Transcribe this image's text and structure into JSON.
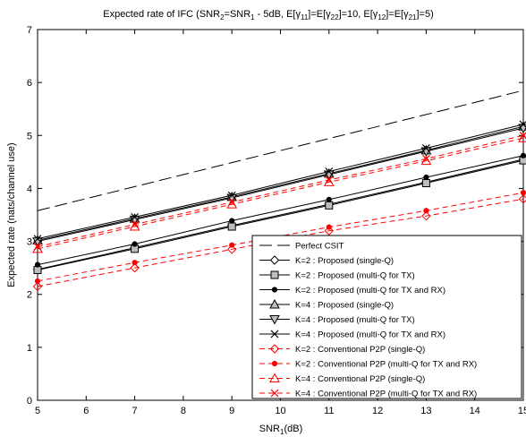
{
  "chart_data": {
    "type": "line",
    "title": {
      "pre": "Expected rate of IFC (SNR",
      "s1": "2",
      "mid1": "=SNR",
      "s2": "1",
      "mid2": " - 5dB, E[γ",
      "s3": "11",
      "mid3": "]=E[γ",
      "s4": "22",
      "mid4": "]=10, E[γ",
      "s5": "12",
      "mid5": "]=E[γ",
      "s6": "21",
      "post": "]=5)"
    },
    "xlabel": {
      "pre": "SNR",
      "sub": "1",
      "post": "(dB)"
    },
    "ylabel": "Expected rate (nats/channel use)",
    "xlim": [
      5,
      15
    ],
    "ylim": [
      0,
      7
    ],
    "xticks": [
      "5",
      "6",
      "7",
      "8",
      "9",
      "10",
      "11",
      "12",
      "13",
      "14",
      "15"
    ],
    "yticks": [
      "0",
      "1",
      "2",
      "3",
      "4",
      "5",
      "6",
      "7"
    ],
    "grid": false,
    "legend_position": "bottom-right",
    "series": [
      {
        "name": "Perfect CSIT",
        "color": "#000000",
        "dash": "longdash",
        "marker": "none",
        "marker_x": [],
        "x": [
          5,
          15
        ],
        "y": [
          3.58,
          5.85
        ]
      },
      {
        "name": "K=2 : Proposed (single-Q)",
        "color": "#000000",
        "dash": "solid",
        "marker": "diamond",
        "marker_x": [
          5,
          7,
          9,
          11,
          13,
          15
        ],
        "x": [
          5,
          7,
          9,
          11,
          13,
          15
        ],
        "y": [
          2.47,
          2.88,
          3.3,
          3.7,
          4.12,
          4.55
        ]
      },
      {
        "name": "K=2 : Proposed (multi-Q for TX)",
        "color": "#000000",
        "dash": "solid",
        "marker": "square",
        "marker_x": [
          5,
          7,
          9,
          11,
          13,
          15
        ],
        "x": [
          5,
          7,
          9,
          11,
          13,
          15
        ],
        "y": [
          2.46,
          2.86,
          3.28,
          3.68,
          4.1,
          4.53
        ]
      },
      {
        "name": "K=2 : Proposed (multi-Q for TX and RX)",
        "color": "#000000",
        "dash": "solid",
        "marker": "dot",
        "marker_x": [
          5,
          7,
          9,
          11,
          13,
          15
        ],
        "x": [
          5,
          7,
          9,
          11,
          13,
          15
        ],
        "y": [
          2.56,
          2.95,
          3.39,
          3.79,
          4.21,
          4.62
        ]
      },
      {
        "name": "K=4 : Proposed (single-Q)",
        "color": "#000000",
        "dash": "solid",
        "marker": "triangle-up",
        "marker_x": [
          5,
          7,
          9,
          11,
          13,
          15
        ],
        "x": [
          5,
          7,
          9,
          11,
          13,
          15
        ],
        "y": [
          3.02,
          3.43,
          3.84,
          4.28,
          4.72,
          5.17
        ]
      },
      {
        "name": "K=4 : Proposed (multi-Q for TX)",
        "color": "#000000",
        "dash": "solid",
        "marker": "triangle-down",
        "marker_x": [
          5,
          7,
          9,
          11,
          13,
          15
        ],
        "x": [
          5,
          7,
          9,
          11,
          13,
          15
        ],
        "y": [
          3.0,
          3.41,
          3.82,
          4.26,
          4.7,
          5.14
        ]
      },
      {
        "name": "K=4 : Proposed (multi-Q for TX and RX)",
        "color": "#000000",
        "dash": "solid",
        "marker": "x",
        "marker_x": [
          5,
          7,
          9,
          11,
          13,
          15
        ],
        "x": [
          5,
          7,
          9,
          11,
          13,
          15
        ],
        "y": [
          3.05,
          3.46,
          3.87,
          4.32,
          4.76,
          5.21
        ]
      },
      {
        "name": "K=2 : Conventional P2P (single-Q)",
        "color": "#ff0000",
        "dash": "dashed",
        "marker": "diamond",
        "marker_x": [
          5,
          7,
          9,
          11,
          13,
          15
        ],
        "x": [
          5,
          7,
          9,
          11,
          13,
          15
        ],
        "y": [
          2.15,
          2.5,
          2.85,
          3.2,
          3.48,
          3.8
        ]
      },
      {
        "name": "K=2 : Conventional P2P (multi-Q for TX and RX)",
        "color": "#ff0000",
        "dash": "dashed",
        "marker": "dot",
        "marker_x": [
          5,
          7,
          9,
          11,
          13,
          15
        ],
        "x": [
          5,
          7,
          9,
          11,
          13,
          15
        ],
        "y": [
          2.25,
          2.6,
          2.93,
          3.27,
          3.58,
          3.92
        ]
      },
      {
        "name": "K=4 : Conventional P2P (single-Q)",
        "color": "#ff0000",
        "dash": "dashed",
        "marker": "triangle-up",
        "marker_x": [
          5,
          7,
          9,
          11,
          13,
          15
        ],
        "x": [
          5,
          7,
          9,
          11,
          13,
          15
        ],
        "y": [
          2.86,
          3.28,
          3.7,
          4.12,
          4.52,
          4.95
        ]
      },
      {
        "name": "K=4 : Conventional P2P (multi-Q for TX and RX)",
        "color": "#ff0000",
        "dash": "dashed",
        "marker": "x",
        "marker_x": [
          5,
          7,
          9,
          11,
          13,
          15
        ],
        "x": [
          5,
          7,
          9,
          11,
          13,
          15
        ],
        "y": [
          2.9,
          3.32,
          3.74,
          4.16,
          4.56,
          5.0
        ]
      }
    ]
  }
}
